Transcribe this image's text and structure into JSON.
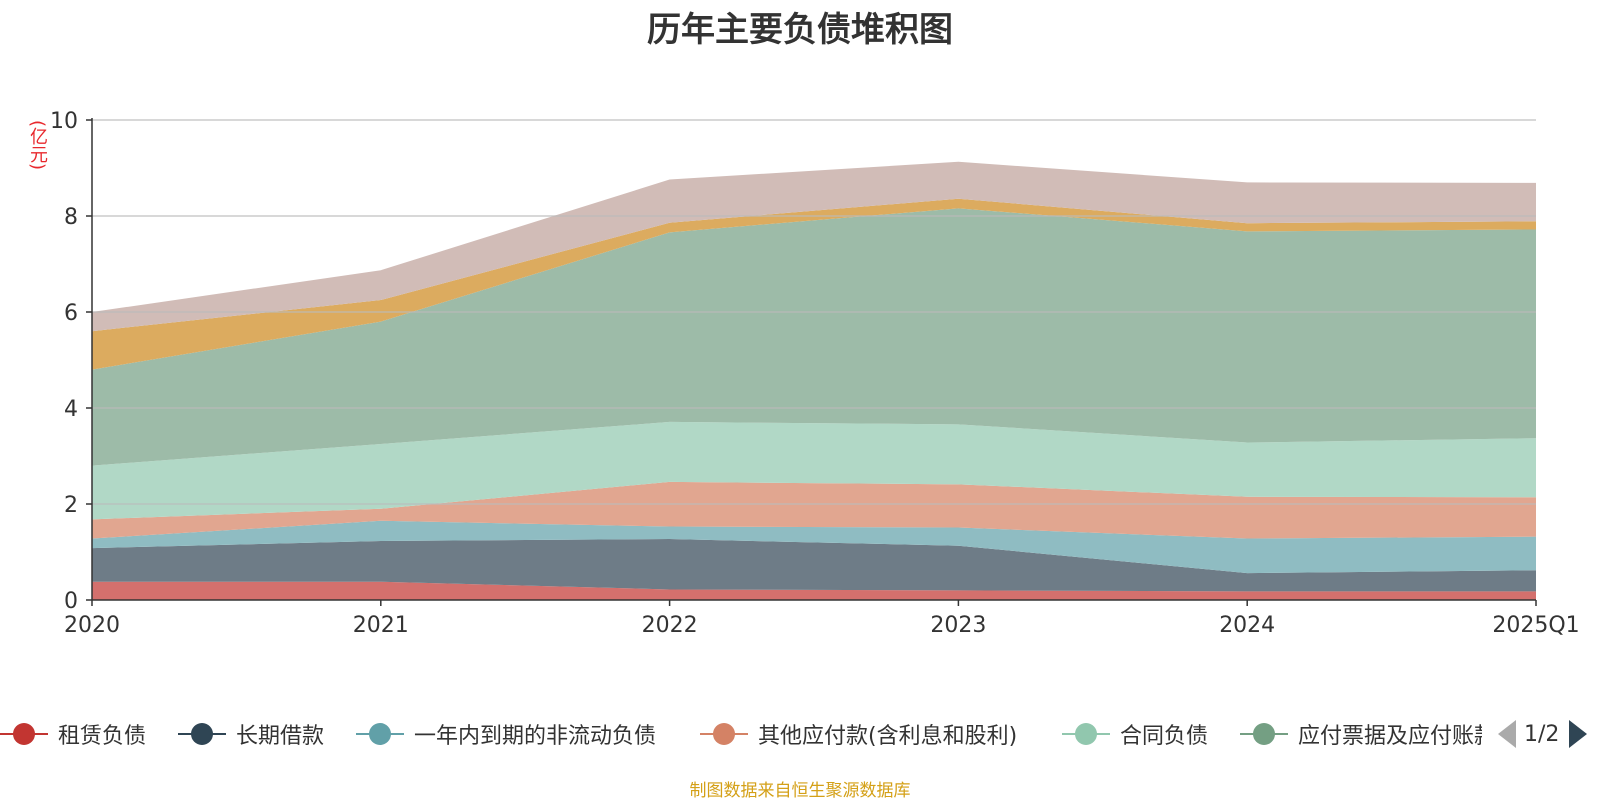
{
  "colors": {
    "source_text": "#d4a017",
    "unit_text": "#e8282d",
    "axis": "#333333",
    "grid": "#bbbbbb"
  },
  "chart_data": {
    "type": "area",
    "stacked": true,
    "title": "历年主要负债堆积图",
    "unit": "(亿元)",
    "categories": [
      "2020",
      "2021",
      "2022",
      "2023",
      "2024",
      "2025Q1"
    ],
    "ylim": [
      0,
      10
    ],
    "yticks": [
      "0",
      "2",
      "4",
      "6",
      "8",
      "10"
    ],
    "grid": true,
    "series": [
      {
        "name": "租赁负债",
        "color": "#c23531",
        "fill": "#d4706d",
        "values": [
          0.38,
          0.38,
          0.22,
          0.2,
          0.18,
          0.18
        ]
      },
      {
        "name": "长期借款",
        "color": "#2f4554",
        "fill": "#6e7c87",
        "values": [
          0.7,
          0.85,
          1.05,
          0.93,
          0.38,
          0.44
        ]
      },
      {
        "name": "一年内到期的非流动负债",
        "color": "#61a0a8",
        "fill": "#8fbcc2",
        "values": [
          0.2,
          0.42,
          0.26,
          0.38,
          0.72,
          0.7
        ]
      },
      {
        "name": "其他应付款(含利息和股利)",
        "color": "#d48265",
        "fill": "#e1a690",
        "values": [
          0.4,
          0.25,
          0.93,
          0.9,
          0.87,
          0.82
        ]
      },
      {
        "name": "合同负债",
        "color": "#91c7ae",
        "fill": "#b1d8c6",
        "values": [
          1.12,
          1.35,
          1.25,
          1.25,
          1.13,
          1.23
        ]
      },
      {
        "name": "应付票据及应付账款",
        "color": "#749f83",
        "fill": "#9dbba8",
        "values": [
          2.0,
          2.55,
          3.95,
          4.5,
          4.4,
          4.35
        ]
      },
      {
        "name": "",
        "color": "#ca8622",
        "fill": "#dcab5f",
        "values": [
          0.8,
          0.45,
          0.2,
          0.2,
          0.17,
          0.17
        ]
      },
      {
        "name": "",
        "color": "#bda29a",
        "fill": "#d1bcb7",
        "values": [
          0.4,
          0.62,
          0.9,
          0.77,
          0.85,
          0.8
        ]
      }
    ]
  },
  "legend": {
    "items": [
      {
        "label": "租赁负债",
        "color": "#c23531"
      },
      {
        "label": "长期借款",
        "color": "#2f4554"
      },
      {
        "label": "一年内到期的非流动负债",
        "color": "#61a0a8"
      },
      {
        "label": "其他应付款(含利息和股利)",
        "color": "#d48265"
      },
      {
        "label": "合同负债",
        "color": "#91c7ae"
      },
      {
        "label": "应付票据及应付账款",
        "color": "#749f83"
      }
    ],
    "page_text": "1/2"
  },
  "source_note": "制图数据来自恒生聚源数据库"
}
